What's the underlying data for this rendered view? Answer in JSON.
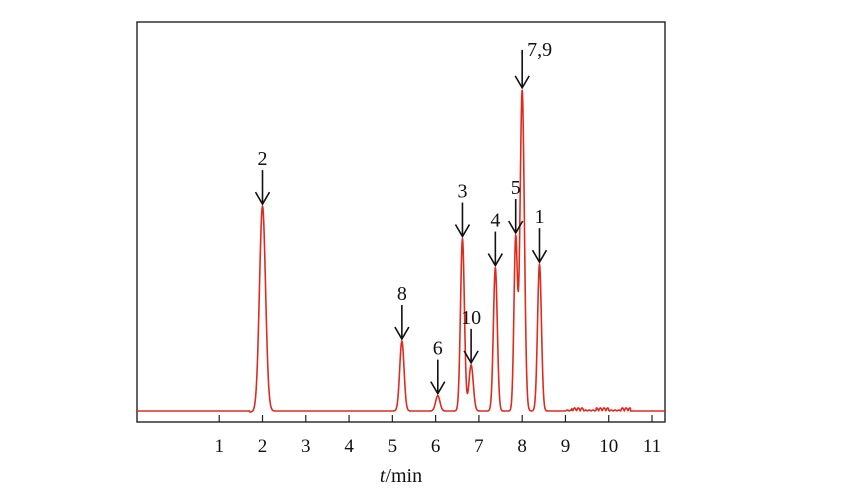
{
  "chart_data": {
    "type": "line",
    "title": "",
    "xlabel_italic": "t",
    "xlabel_rest": "/min",
    "ylabel": "",
    "xlim": [
      -0.9,
      11.3
    ],
    "ylim": [
      0,
      100
    ],
    "grid": false,
    "x_ticks": [
      1,
      2,
      3,
      4,
      5,
      6,
      7,
      8,
      9,
      10,
      11
    ],
    "x_tick_labels": [
      "1",
      "2",
      "3",
      "4",
      "5",
      "6",
      "7",
      "8",
      "9",
      "10",
      "11"
    ],
    "baseline": 6,
    "peaks": [
      {
        "label": "2",
        "x": 2.0,
        "y": 66,
        "width": 0.07
      },
      {
        "label": "8",
        "x": 5.22,
        "y": 26.5,
        "width": 0.05
      },
      {
        "label": "6",
        "x": 6.05,
        "y": 10.5,
        "width": 0.05
      },
      {
        "label": "3",
        "x": 6.62,
        "y": 56.5,
        "width": 0.045
      },
      {
        "label": "10",
        "x": 6.82,
        "y": 19.5,
        "width": 0.05
      },
      {
        "label": "4",
        "x": 7.38,
        "y": 48,
        "width": 0.045
      },
      {
        "label": "5",
        "x": 7.85,
        "y": 56.5,
        "width": 0.04
      },
      {
        "label": "7,9",
        "x": 8.0,
        "y": 100,
        "width": 0.05
      },
      {
        "label": "1",
        "x": 8.4,
        "y": 49,
        "width": 0.045
      }
    ]
  }
}
